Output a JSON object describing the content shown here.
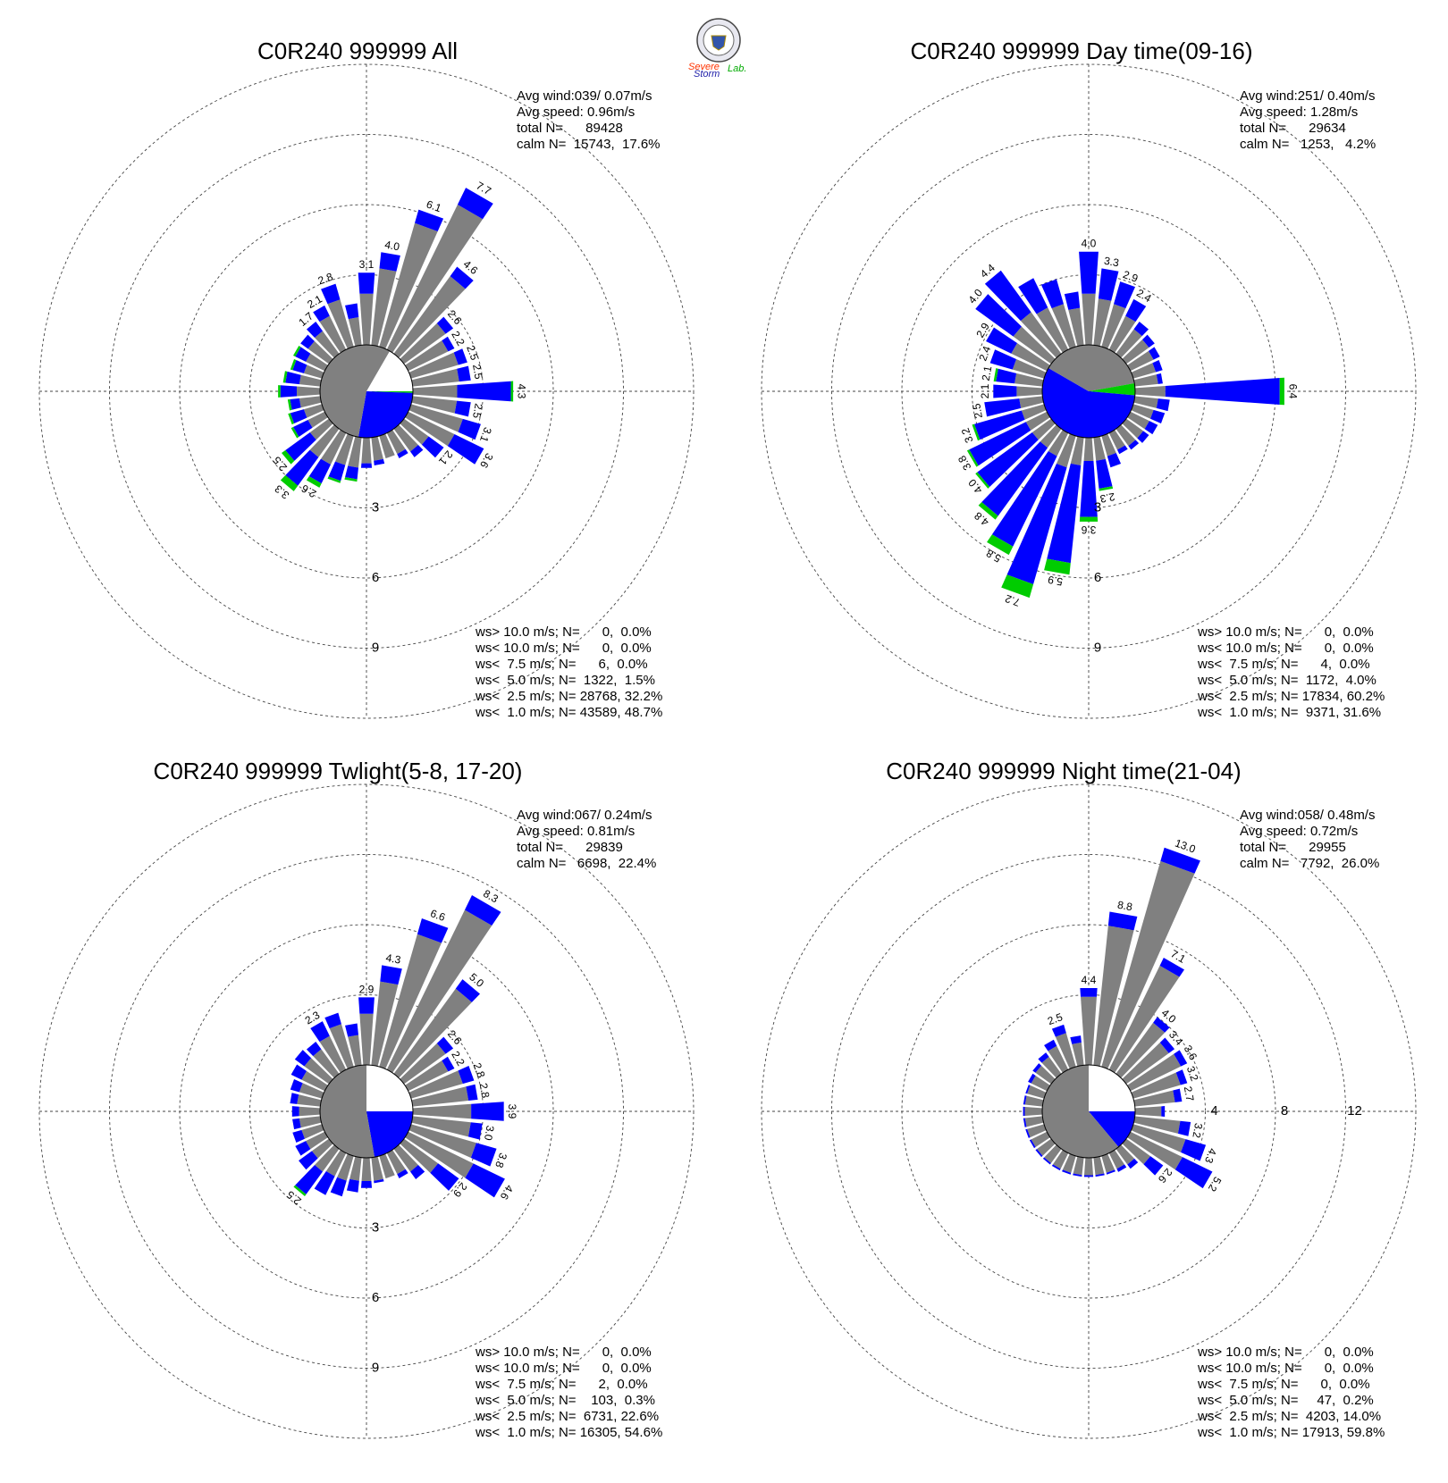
{
  "logo": {
    "text_severe": "Severe",
    "text_storm": "Storm",
    "text_lab": "Lab."
  },
  "colors": {
    "ws_gt_10": "#9900cc",
    "ws_lt_10": "#ff0000",
    "ws_lt_7_5": "#ff9933",
    "ws_lt_5": "#00cc00",
    "ws_lt_2_5": "#0000ff",
    "ws_lt_1": "#808080"
  },
  "chart_data": [
    {
      "type": "windrose",
      "title": "C0R240 999999 All",
      "stats": {
        "avg_wind": "Avg wind:039/ 0.07m/s",
        "avg_speed": "Avg speed: 0.96m/s",
        "total": "total N=      89428",
        "calm": "calm N=  15743,  17.6%"
      },
      "rlim": 12,
      "ring_labels": [
        "3",
        "6",
        "9"
      ],
      "legend": [
        {
          "text": "ws> 10.0 m/s; N=      0,  0.0%",
          "color": "#9900cc"
        },
        {
          "text": "ws< 10.0 m/s; N=      0,  0.0%",
          "color": "#ff0000"
        },
        {
          "text": "ws<  7.5 m/s; N=      6,  0.0%",
          "color": "#ff9933"
        },
        {
          "text": "ws<  5.0 m/s; N=  1322,  1.5%",
          "color": "#00cc00"
        },
        {
          "text": "ws<  2.5 m/s; N= 28768, 32.2%",
          "color": "#0000ff"
        },
        {
          "text": "ws<  1.0 m/s; N= 43589, 48.7%",
          "color": "#808080"
        }
      ],
      "calm_pie": [
        {
          "from": 0,
          "to": 90,
          "color": "#ffffff"
        },
        {
          "from": 90,
          "to": 92,
          "color": "#00cc00"
        },
        {
          "from": 92,
          "to": 190,
          "color": "#0000ff"
        },
        {
          "from": 190,
          "to": 390,
          "color": "#808080"
        }
      ],
      "directions": [
        0,
        10,
        20,
        30,
        40,
        50,
        60,
        70,
        80,
        90,
        100,
        110,
        120,
        130,
        140,
        150,
        160,
        170,
        180,
        190,
        200,
        210,
        220,
        230,
        240,
        250,
        260,
        270,
        280,
        290,
        300,
        310,
        320,
        330,
        340,
        350
      ],
      "total": [
        3.1,
        4.0,
        6.1,
        7.7,
        4.6,
        2.6,
        2.2,
        2.5,
        2.5,
        4.3,
        2.5,
        3.1,
        3.6,
        2.1,
        1.5,
        1.2,
        1.0,
        1.2,
        1.3,
        1.9,
        2.1,
        2.6,
        3.3,
        2.5,
        1.6,
        1.5,
        1.4,
        1.8,
        1.6,
        1.4,
        1.5,
        1.5,
        1.7,
        2.1,
        2.8,
        1.8
      ],
      "lt1": [
        2.2,
        3.3,
        5.5,
        6.9,
        4.1,
        2.2,
        1.9,
        2.1,
        2.0,
        1.9,
        1.9,
        2.3,
        2.2,
        1.3,
        1.2,
        1.0,
        1.0,
        1.0,
        1.1,
        1.3,
        1.3,
        1.5,
        1.5,
        1.0,
        0.8,
        0.8,
        0.9,
        1.0,
        0.9,
        0.8,
        0.9,
        1.1,
        1.2,
        1.6,
        2.1,
        1.2
      ],
      "lt25": [
        3.1,
        4.0,
        6.1,
        7.7,
        4.6,
        2.6,
        2.2,
        2.5,
        2.5,
        4.2,
        2.5,
        3.1,
        3.6,
        2.1,
        1.5,
        1.2,
        1.0,
        1.2,
        1.3,
        1.8,
        2.0,
        2.4,
        3.0,
        2.3,
        1.5,
        1.4,
        1.3,
        1.7,
        1.5,
        1.3,
        1.4,
        1.5,
        1.7,
        2.1,
        2.8,
        1.8
      ],
      "lt5": [
        3.1,
        4.0,
        6.1,
        7.7,
        4.6,
        2.6,
        2.2,
        2.5,
        2.5,
        4.3,
        2.5,
        3.1,
        3.6,
        2.1,
        1.5,
        1.2,
        1.0,
        1.2,
        1.3,
        1.9,
        2.1,
        2.6,
        3.3,
        2.5,
        1.6,
        1.5,
        1.4,
        1.8,
        1.6,
        1.4,
        1.5,
        1.5,
        1.7,
        2.1,
        2.8,
        1.8
      ],
      "labeled": [
        0,
        1,
        2,
        3,
        4,
        5,
        6,
        7,
        8,
        9,
        10,
        11,
        12,
        13,
        21,
        22,
        23,
        32,
        33,
        34
      ]
    },
    {
      "type": "windrose",
      "title": "C0R240 999999 Day time(09-16)",
      "stats": {
        "avg_wind": "Avg wind:251/ 0.40m/s",
        "avg_speed": "Avg speed: 1.28m/s",
        "total": "total N=      29634",
        "calm": "calm N=   1253,   4.2%"
      },
      "rlim": 12,
      "ring_labels": [
        "3",
        "6",
        "9"
      ],
      "legend": [
        {
          "text": "ws> 10.0 m/s; N=      0,  0.0%",
          "color": "#9900cc"
        },
        {
          "text": "ws< 10.0 m/s; N=      0,  0.0%",
          "color": "#ff0000"
        },
        {
          "text": "ws<  7.5 m/s; N=      4,  0.0%",
          "color": "#ff9933"
        },
        {
          "text": "ws<  5.0 m/s; N=  1172,  4.0%",
          "color": "#00cc00"
        },
        {
          "text": "ws<  2.5 m/s; N= 17834, 60.2%",
          "color": "#0000ff"
        },
        {
          "text": "ws<  1.0 m/s; N=  9371, 31.6%",
          "color": "#808080"
        }
      ],
      "calm_pie": [
        {
          "from": 0,
          "to": 80,
          "color": "#808080"
        },
        {
          "from": 80,
          "to": 95,
          "color": "#00cc00"
        },
        {
          "from": 95,
          "to": 300,
          "color": "#0000ff"
        },
        {
          "from": 300,
          "to": 360,
          "color": "#808080"
        }
      ],
      "directions": [
        0,
        10,
        20,
        30,
        40,
        50,
        60,
        70,
        80,
        90,
        100,
        110,
        120,
        130,
        140,
        150,
        160,
        170,
        180,
        190,
        200,
        210,
        220,
        230,
        240,
        250,
        260,
        270,
        280,
        290,
        300,
        310,
        320,
        330,
        340,
        350
      ],
      "total": [
        4.0,
        3.3,
        2.9,
        2.4,
        1.7,
        1.5,
        1.4,
        1.3,
        1.2,
        6.4,
        1.5,
        1.4,
        1.3,
        1.2,
        1.1,
        1.0,
        1.4,
        2.3,
        3.6,
        5.9,
        7.2,
        5.8,
        4.8,
        4.0,
        3.8,
        3.2,
        2.5,
        2.1,
        2.1,
        2.4,
        2.9,
        4.0,
        4.4,
        3.4,
        3.0,
        2.3
      ],
      "lt1": [
        2.2,
        2.0,
        1.9,
        1.6,
        1.3,
        1.2,
        1.1,
        1.0,
        1.0,
        1.3,
        1.0,
        0.9,
        0.9,
        0.9,
        0.9,
        0.8,
        0.9,
        1.0,
        1.0,
        1.2,
        1.4,
        1.1,
        1.0,
        1.0,
        1.0,
        1.0,
        1.0,
        1.1,
        1.2,
        1.4,
        1.7,
        2.0,
        2.2,
        2.0,
        1.9,
        1.6
      ],
      "lt25": [
        4.0,
        3.3,
        2.9,
        2.4,
        1.7,
        1.5,
        1.4,
        1.3,
        1.2,
        6.2,
        1.5,
        1.4,
        1.3,
        1.2,
        1.1,
        1.0,
        1.4,
        2.2,
        3.4,
        5.4,
        6.6,
        5.4,
        4.6,
        3.9,
        3.7,
        3.1,
        2.5,
        2.1,
        2.0,
        2.4,
        2.9,
        4.0,
        4.4,
        3.4,
        3.0,
        2.3
      ],
      "lt5": [
        4.0,
        3.3,
        2.9,
        2.4,
        1.7,
        1.5,
        1.4,
        1.3,
        1.2,
        6.4,
        1.5,
        1.4,
        1.3,
        1.2,
        1.1,
        1.0,
        1.4,
        2.3,
        3.6,
        5.9,
        7.2,
        5.8,
        4.8,
        4.0,
        3.8,
        3.2,
        2.5,
        2.1,
        2.1,
        2.4,
        2.9,
        4.0,
        4.4,
        3.4,
        3.0,
        2.3
      ],
      "labeled": [
        0,
        1,
        2,
        3,
        9,
        17,
        18,
        19,
        20,
        21,
        22,
        23,
        24,
        25,
        26,
        27,
        28,
        29,
        30,
        31,
        32
      ]
    },
    {
      "type": "windrose",
      "title": "C0R240 999999 Twlight(5-8, 17-20)",
      "stats": {
        "avg_wind": "Avg wind:067/ 0.24m/s",
        "avg_speed": "Avg speed: 0.81m/s",
        "total": "total N=      29839",
        "calm": "calm N=   6698,  22.4%"
      },
      "rlim": 12,
      "ring_labels": [
        "3",
        "6",
        "9"
      ],
      "legend": [
        {
          "text": "ws> 10.0 m/s; N=      0,  0.0%",
          "color": "#9900cc"
        },
        {
          "text": "ws< 10.0 m/s; N=      0,  0.0%",
          "color": "#ff0000"
        },
        {
          "text": "ws<  7.5 m/s; N=      2,  0.0%",
          "color": "#ff9933"
        },
        {
          "text": "ws<  5.0 m/s; N=    103,  0.3%",
          "color": "#00cc00"
        },
        {
          "text": "ws<  2.5 m/s; N=  6731, 22.6%",
          "color": "#0000ff"
        },
        {
          "text": "ws<  1.0 m/s; N= 16305, 54.6%",
          "color": "#808080"
        }
      ],
      "calm_pie": [
        {
          "from": 0,
          "to": 90,
          "color": "#ffffff"
        },
        {
          "from": 90,
          "to": 170,
          "color": "#0000ff"
        },
        {
          "from": 170,
          "to": 360,
          "color": "#808080"
        }
      ],
      "directions": [
        0,
        10,
        20,
        30,
        40,
        50,
        60,
        70,
        80,
        90,
        100,
        110,
        120,
        130,
        140,
        150,
        160,
        170,
        180,
        190,
        200,
        210,
        220,
        230,
        240,
        250,
        260,
        270,
        280,
        290,
        300,
        310,
        320,
        330,
        340,
        350
      ],
      "total": [
        2.9,
        4.3,
        6.6,
        8.3,
        5.0,
        2.6,
        2.2,
        2.8,
        2.8,
        3.9,
        3.0,
        3.8,
        4.6,
        2.9,
        1.6,
        1.2,
        1.0,
        1.1,
        1.3,
        1.5,
        1.8,
        2.0,
        2.5,
        1.6,
        1.4,
        1.3,
        1.2,
        1.2,
        1.3,
        1.4,
        1.6,
        1.8,
        1.7,
        2.3,
        2.4,
        1.8
      ],
      "lt1": [
        2.2,
        3.6,
        5.9,
        7.6,
        4.5,
        2.2,
        1.9,
        2.3,
        2.4,
        2.5,
        2.5,
        2.9,
        3.1,
        1.8,
        1.2,
        1.0,
        1.0,
        1.0,
        1.0,
        1.0,
        1.1,
        1.1,
        1.2,
        0.9,
        0.9,
        0.9,
        0.9,
        0.9,
        1.0,
        1.0,
        1.1,
        1.3,
        1.3,
        1.6,
        1.9,
        1.3
      ],
      "lt25": [
        2.9,
        4.3,
        6.6,
        8.3,
        5.0,
        2.6,
        2.2,
        2.8,
        2.8,
        3.9,
        3.0,
        3.8,
        4.6,
        2.9,
        1.6,
        1.2,
        1.0,
        1.1,
        1.3,
        1.5,
        1.8,
        2.0,
        2.4,
        1.6,
        1.4,
        1.3,
        1.2,
        1.2,
        1.3,
        1.4,
        1.6,
        1.8,
        1.7,
        2.3,
        2.4,
        1.8
      ],
      "lt5": [
        2.9,
        4.3,
        6.6,
        8.3,
        5.0,
        2.6,
        2.2,
        2.8,
        2.8,
        3.9,
        3.0,
        3.8,
        4.6,
        2.9,
        1.6,
        1.2,
        1.0,
        1.1,
        1.3,
        1.5,
        1.8,
        2.0,
        2.5,
        1.6,
        1.4,
        1.3,
        1.2,
        1.2,
        1.3,
        1.4,
        1.6,
        1.8,
        1.7,
        2.3,
        2.4,
        1.8
      ],
      "labeled": [
        0,
        1,
        2,
        3,
        4,
        5,
        6,
        7,
        8,
        9,
        10,
        11,
        12,
        13,
        22,
        33
      ]
    },
    {
      "type": "windrose",
      "title": "C0R240 999999 Night time(21-04)",
      "stats": {
        "avg_wind": "Avg wind:058/ 0.48m/s",
        "avg_speed": "Avg speed: 0.72m/s",
        "total": "total N=      29955",
        "calm": "calm N=   7792,  26.0%"
      },
      "rlim": 16,
      "ring_labels": [
        "4",
        "8",
        "12"
      ],
      "legend": [
        {
          "text": "ws> 10.0 m/s; N=      0,  0.0%",
          "color": "#9900cc"
        },
        {
          "text": "ws< 10.0 m/s; N=      0,  0.0%",
          "color": "#ff0000"
        },
        {
          "text": "ws<  7.5 m/s; N=      0,  0.0%",
          "color": "#ff9933"
        },
        {
          "text": "ws<  5.0 m/s; N=     47,  0.2%",
          "color": "#00cc00"
        },
        {
          "text": "ws<  2.5 m/s; N=  4203, 14.0%",
          "color": "#0000ff"
        },
        {
          "text": "ws<  1.0 m/s; N= 17913, 59.8%",
          "color": "#808080"
        }
      ],
      "calm_pie": [
        {
          "from": 0,
          "to": 90,
          "color": "#ffffff"
        },
        {
          "from": 90,
          "to": 140,
          "color": "#0000ff"
        },
        {
          "from": 140,
          "to": 360,
          "color": "#808080"
        }
      ],
      "directions": [
        0,
        10,
        20,
        30,
        40,
        50,
        60,
        70,
        80,
        90,
        100,
        110,
        120,
        130,
        140,
        150,
        160,
        170,
        180,
        190,
        200,
        210,
        220,
        230,
        240,
        250,
        260,
        270,
        280,
        290,
        300,
        310,
        320,
        330,
        340,
        350
      ],
      "total": [
        4.4,
        8.8,
        13.0,
        7.1,
        4.0,
        3.4,
        3.6,
        3.2,
        2.7,
        1.7,
        3.2,
        4.3,
        5.2,
        2.6,
        1.4,
        1.2,
        1.1,
        1.1,
        1.1,
        1.1,
        1.1,
        1.1,
        1.1,
        1.1,
        1.1,
        1.1,
        1.1,
        1.1,
        1.1,
        1.1,
        1.2,
        1.3,
        1.5,
        1.9,
        2.5,
        1.7
      ],
      "lt1": [
        3.9,
        8.0,
        12.2,
        6.6,
        3.6,
        3.0,
        3.2,
        2.8,
        2.3,
        1.5,
        2.6,
        3.1,
        3.3,
        1.7,
        1.1,
        1.0,
        1.0,
        1.0,
        1.0,
        1.0,
        1.0,
        1.0,
        1.0,
        1.0,
        1.0,
        1.0,
        1.0,
        1.0,
        1.0,
        1.0,
        1.0,
        1.1,
        1.2,
        1.5,
        2.0,
        1.3
      ],
      "lt25": [
        4.4,
        8.8,
        13.0,
        7.1,
        4.0,
        3.4,
        3.6,
        3.2,
        2.7,
        1.7,
        3.2,
        4.3,
        5.2,
        2.6,
        1.4,
        1.2,
        1.1,
        1.1,
        1.1,
        1.1,
        1.1,
        1.1,
        1.1,
        1.1,
        1.1,
        1.1,
        1.1,
        1.1,
        1.1,
        1.1,
        1.2,
        1.3,
        1.5,
        1.9,
        2.5,
        1.7
      ],
      "lt5": [
        4.4,
        8.8,
        13.0,
        7.1,
        4.0,
        3.4,
        3.6,
        3.2,
        2.7,
        1.7,
        3.2,
        4.3,
        5.2,
        2.6,
        1.4,
        1.2,
        1.1,
        1.1,
        1.1,
        1.1,
        1.1,
        1.1,
        1.1,
        1.1,
        1.1,
        1.1,
        1.1,
        1.1,
        1.1,
        1.1,
        1.2,
        1.3,
        1.5,
        1.9,
        2.5,
        1.7
      ],
      "labeled": [
        0,
        1,
        2,
        3,
        4,
        5,
        6,
        7,
        8,
        10,
        11,
        12,
        13,
        34
      ]
    }
  ]
}
